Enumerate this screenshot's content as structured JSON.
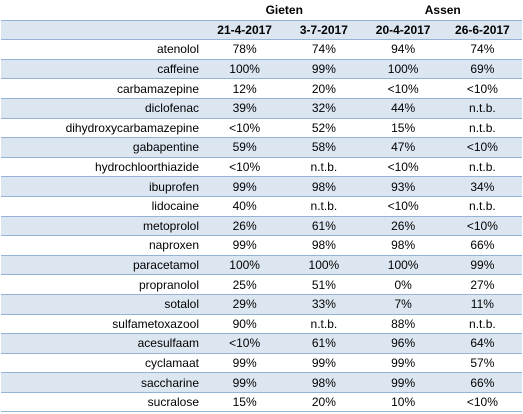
{
  "table": {
    "groups": [
      "Gieten",
      "Assen"
    ],
    "dates": [
      "21-4-2017",
      "3-7-2017",
      "20-4-2017",
      "26-6-2017"
    ],
    "rows": [
      [
        "atenolol",
        "78%",
        "74%",
        "94%",
        "74%"
      ],
      [
        "caffeine",
        "100%",
        "99%",
        "100%",
        "69%"
      ],
      [
        "carbamazepine",
        "12%",
        "20%",
        "<10%",
        "<10%"
      ],
      [
        "diclofenac",
        "39%",
        "32%",
        "44%",
        "n.t.b."
      ],
      [
        "dihydroxycarbamazepine",
        "<10%",
        "52%",
        "15%",
        "n.t.b."
      ],
      [
        "gabapentine",
        "59%",
        "58%",
        "47%",
        "<10%"
      ],
      [
        "hydrochloorthiazide",
        "<10%",
        "n.t.b.",
        "<10%",
        "n.t.b."
      ],
      [
        "ibuprofen",
        "99%",
        "98%",
        "93%",
        "34%"
      ],
      [
        "lidocaine",
        "40%",
        "n.t.b.",
        "<10%",
        "n.t.b."
      ],
      [
        "metoprolol",
        "26%",
        "61%",
        "26%",
        "<10%"
      ],
      [
        "naproxen",
        "99%",
        "98%",
        "98%",
        "66%"
      ],
      [
        "paracetamol",
        "100%",
        "100%",
        "100%",
        "99%"
      ],
      [
        "propranolol",
        "25%",
        "51%",
        "0%",
        "27%"
      ],
      [
        "sotalol",
        "29%",
        "33%",
        "7%",
        "11%"
      ],
      [
        "sulfametoxazool",
        "90%",
        "n.t.b.",
        "88%",
        "n.t.b."
      ],
      [
        "acesulfaam",
        "<10%",
        "61%",
        "96%",
        "64%"
      ],
      [
        "cyclamaat",
        "99%",
        "99%",
        "99%",
        "57%"
      ],
      [
        "saccharine",
        "99%",
        "98%",
        "99%",
        "66%"
      ],
      [
        "sucralose",
        "15%",
        "20%",
        "10%",
        "<10%"
      ]
    ]
  }
}
